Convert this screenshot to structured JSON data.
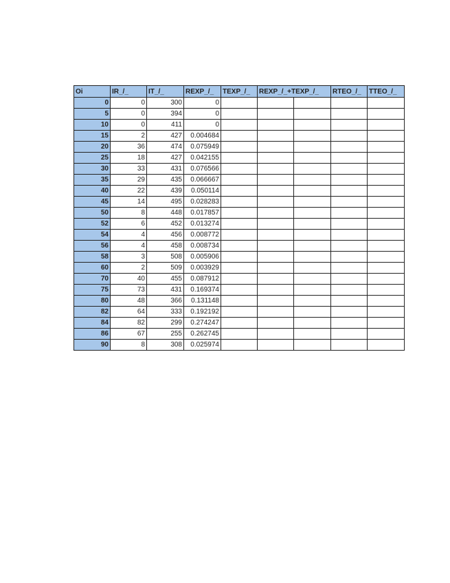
{
  "colors": {
    "header_bg": "#a7c7ea",
    "border": "#222222"
  },
  "table": {
    "headers": [
      "Oi",
      "IR_/_",
      "IT_/_",
      "REXP_/_",
      "TEXP_/_",
      "REXP_/_+TEXP_/_",
      "RTEO_/_",
      "TTEO_/_"
    ],
    "rows": [
      [
        "0",
        "0",
        "300",
        "0"
      ],
      [
        "5",
        "0",
        "394",
        "0"
      ],
      [
        "10",
        "0",
        "411",
        "0"
      ],
      [
        "15",
        "2",
        "427",
        "0.004684"
      ],
      [
        "20",
        "36",
        "474",
        "0.075949"
      ],
      [
        "25",
        "18",
        "427",
        "0.042155"
      ],
      [
        "30",
        "33",
        "431",
        "0.076566"
      ],
      [
        "35",
        "29",
        "435",
        "0.066667"
      ],
      [
        "40",
        "22",
        "439",
        "0.050114"
      ],
      [
        "45",
        "14",
        "495",
        "0.028283"
      ],
      [
        "50",
        "8",
        "448",
        "0.017857"
      ],
      [
        "52",
        "6",
        "452",
        "0.013274"
      ],
      [
        "54",
        "4",
        "456",
        "0.008772"
      ],
      [
        "56",
        "4",
        "458",
        "0.008734"
      ],
      [
        "58",
        "3",
        "508",
        "0.005906"
      ],
      [
        "60",
        "2",
        "509",
        "0.003929"
      ],
      [
        "70",
        "40",
        "455",
        "0.087912"
      ],
      [
        "75",
        "73",
        "431",
        "0.169374"
      ],
      [
        "80",
        "48",
        "366",
        "0.131148"
      ],
      [
        "82",
        "64",
        "333",
        "0.192192"
      ],
      [
        "84",
        "82",
        "299",
        "0.274247"
      ],
      [
        "86",
        "67",
        "255",
        "0.262745"
      ],
      [
        "90",
        "8",
        "308",
        "0.025974"
      ]
    ]
  }
}
